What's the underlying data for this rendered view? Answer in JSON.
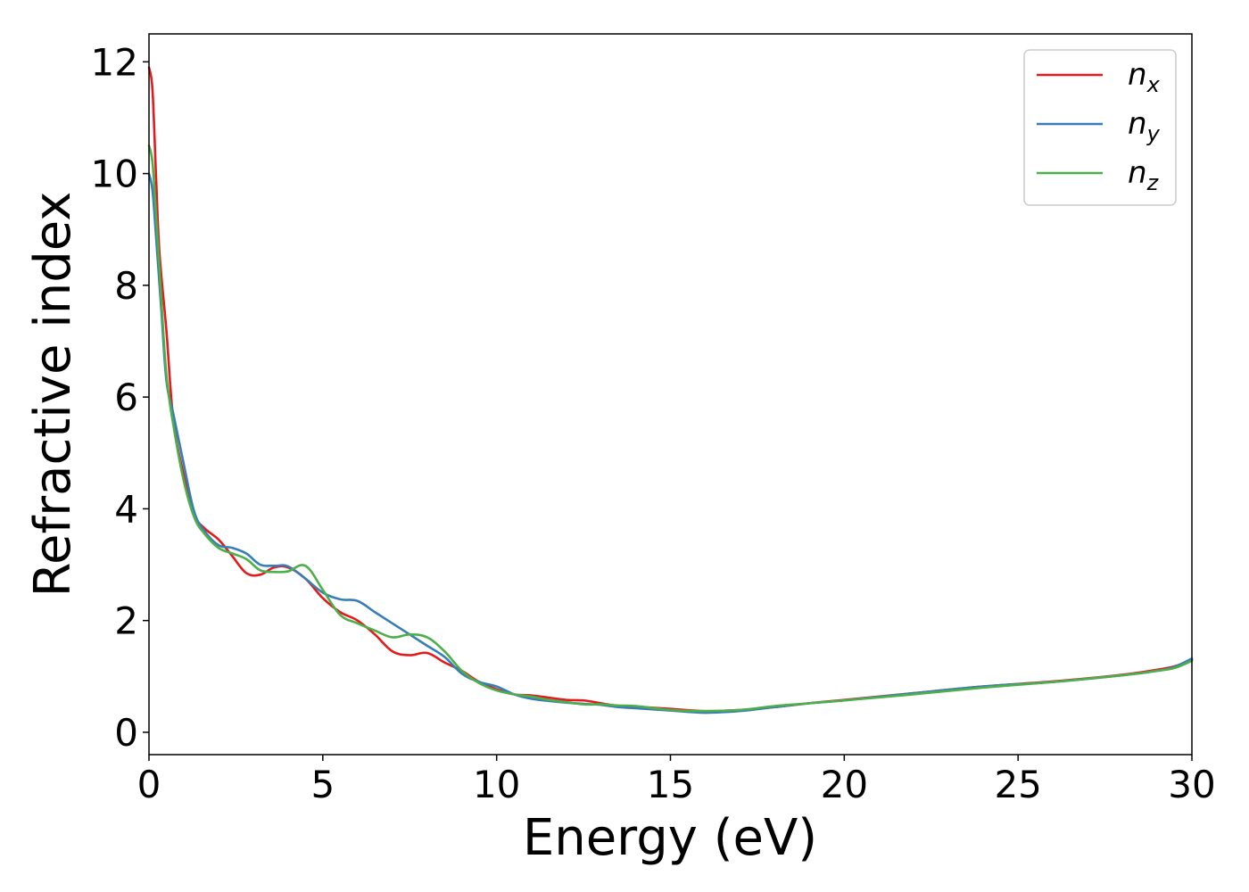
{
  "chart_data": {
    "type": "line",
    "title": "",
    "xlabel": "Energy (eV)",
    "ylabel": "Refractive index",
    "xlim": [
      0,
      30
    ],
    "ylim": [
      -0.4,
      12.5
    ],
    "xticks": [
      0,
      5,
      10,
      15,
      20,
      25,
      30
    ],
    "yticks": [
      0,
      2,
      4,
      6,
      8,
      10,
      12
    ],
    "grid": false,
    "legend_position": "top-right",
    "series": [
      {
        "name_main": "n",
        "name_sub": "x",
        "color": "#e41a1c",
        "x": [
          0,
          0.1,
          0.2,
          0.3,
          0.5,
          0.7,
          1.0,
          1.3,
          1.6,
          2.0,
          2.4,
          2.8,
          3.2,
          3.6,
          4.0,
          4.5,
          5.0,
          5.5,
          6.0,
          6.5,
          7.0,
          7.5,
          8.0,
          8.5,
          9.0,
          9.5,
          10.0,
          10.5,
          11.0,
          11.5,
          12.0,
          12.5,
          13.0,
          13.5,
          14.0,
          15.0,
          16.0,
          17.0,
          18.0,
          19.0,
          20.0,
          22.0,
          24.0,
          26.0,
          28.0,
          29.0,
          29.5,
          30.0
        ],
        "y": [
          11.9,
          11.5,
          10.0,
          8.6,
          7.2,
          5.6,
          4.6,
          3.9,
          3.65,
          3.45,
          3.15,
          2.85,
          2.82,
          2.95,
          2.95,
          2.75,
          2.4,
          2.15,
          2.0,
          1.75,
          1.45,
          1.38,
          1.42,
          1.25,
          1.1,
          0.9,
          0.77,
          0.68,
          0.66,
          0.62,
          0.58,
          0.57,
          0.52,
          0.47,
          0.46,
          0.42,
          0.38,
          0.4,
          0.45,
          0.52,
          0.58,
          0.7,
          0.82,
          0.91,
          1.03,
          1.12,
          1.18,
          1.3
        ]
      },
      {
        "name_main": "n",
        "name_sub": "y",
        "color": "#377eb8",
        "x": [
          0,
          0.1,
          0.2,
          0.35,
          0.5,
          0.7,
          1.0,
          1.3,
          1.6,
          2.0,
          2.4,
          2.8,
          3.2,
          3.6,
          4.0,
          4.5,
          5.0,
          5.5,
          6.0,
          6.5,
          7.0,
          7.5,
          8.0,
          8.5,
          9.0,
          9.5,
          10.0,
          10.5,
          11.0,
          11.5,
          12.0,
          12.5,
          13.0,
          13.5,
          14.0,
          15.0,
          16.0,
          17.0,
          18.0,
          19.0,
          20.0,
          22.0,
          24.0,
          26.0,
          28.0,
          29.0,
          29.5,
          30.0
        ],
        "y": [
          10.0,
          9.7,
          8.9,
          7.6,
          6.3,
          5.7,
          4.8,
          3.95,
          3.6,
          3.35,
          3.3,
          3.2,
          3.0,
          2.98,
          2.97,
          2.75,
          2.5,
          2.38,
          2.35,
          2.15,
          1.95,
          1.75,
          1.55,
          1.35,
          1.05,
          0.9,
          0.82,
          0.68,
          0.6,
          0.56,
          0.53,
          0.51,
          0.49,
          0.45,
          0.43,
          0.39,
          0.35,
          0.38,
          0.45,
          0.52,
          0.57,
          0.7,
          0.82,
          0.9,
          1.02,
          1.1,
          1.17,
          1.32
        ]
      },
      {
        "name_main": "n",
        "name_sub": "z",
        "color": "#4daf4a",
        "x": [
          0,
          0.1,
          0.2,
          0.35,
          0.5,
          0.7,
          1.0,
          1.3,
          1.6,
          2.0,
          2.4,
          2.8,
          3.2,
          3.6,
          4.0,
          4.5,
          5.0,
          5.5,
          6.0,
          6.5,
          7.0,
          7.5,
          8.0,
          8.5,
          9.0,
          9.5,
          10.0,
          10.5,
          11.0,
          11.5,
          12.0,
          12.5,
          13.0,
          13.5,
          14.0,
          15.0,
          16.0,
          17.0,
          18.0,
          19.0,
          20.0,
          22.0,
          24.0,
          26.0,
          28.0,
          29.0,
          29.5,
          30.0
        ],
        "y": [
          10.5,
          10.2,
          9.3,
          7.8,
          6.4,
          5.5,
          4.5,
          3.85,
          3.55,
          3.3,
          3.2,
          3.1,
          2.9,
          2.87,
          2.88,
          2.98,
          2.55,
          2.1,
          1.95,
          1.82,
          1.7,
          1.75,
          1.7,
          1.45,
          1.1,
          0.88,
          0.75,
          0.68,
          0.64,
          0.58,
          0.54,
          0.5,
          0.5,
          0.48,
          0.47,
          0.4,
          0.38,
          0.4,
          0.47,
          0.52,
          0.57,
          0.68,
          0.8,
          0.9,
          1.02,
          1.1,
          1.15,
          1.28
        ]
      }
    ]
  }
}
